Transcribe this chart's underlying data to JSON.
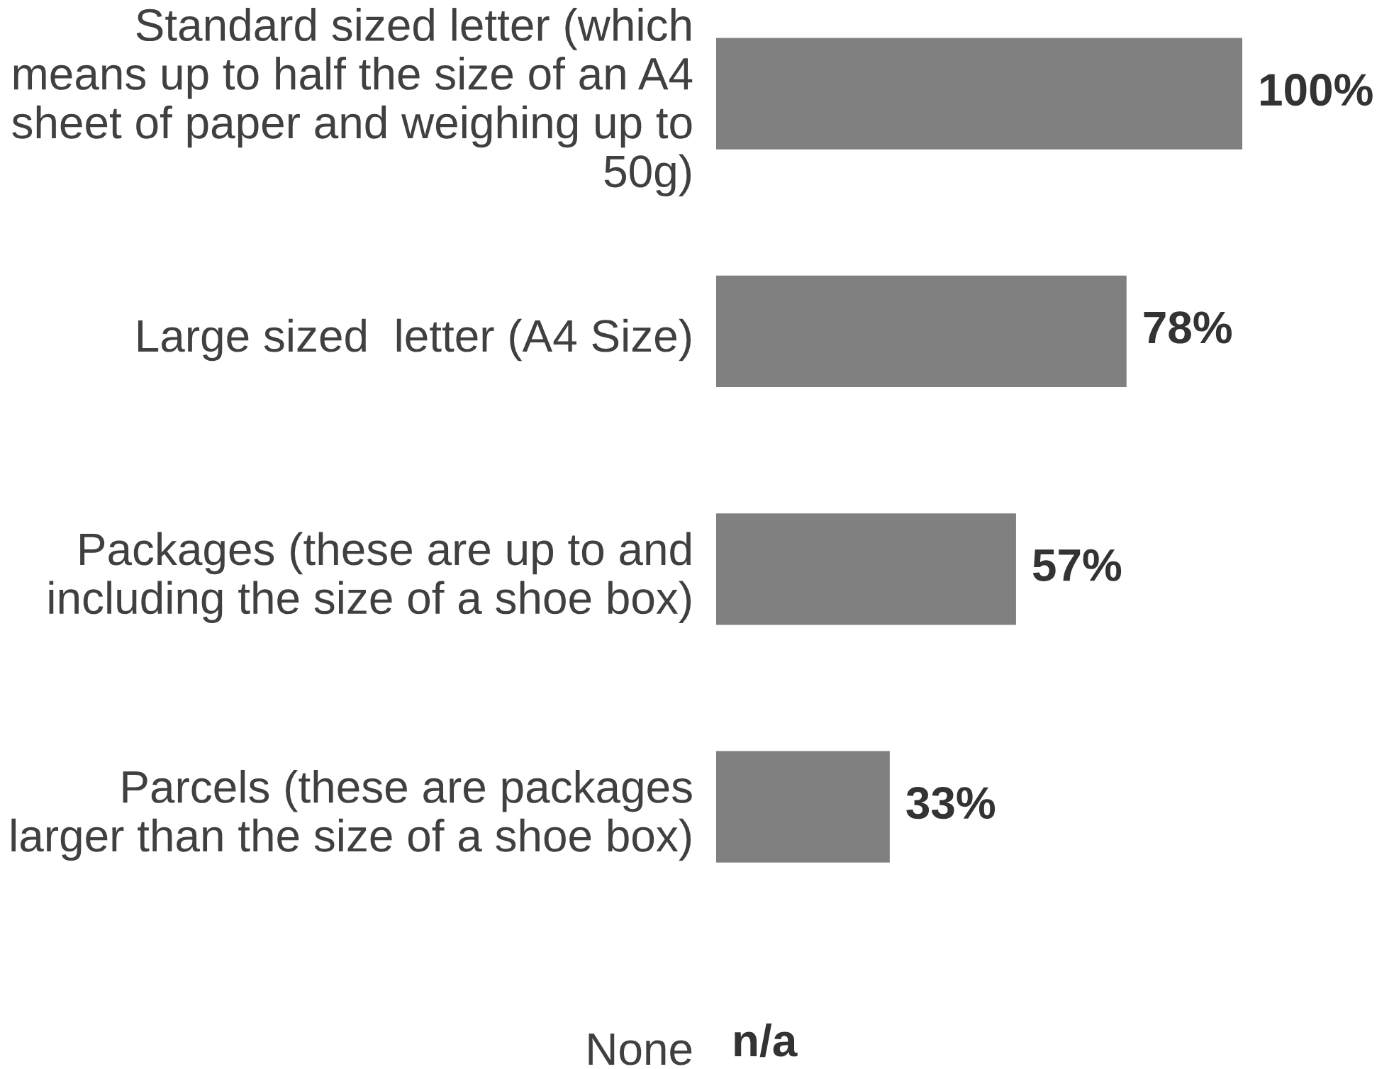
{
  "chart_data": {
    "type": "bar",
    "orientation": "horizontal",
    "categories": [
      "Standard sized letter (which means up to half the size of an A4 sheet of paper and weighing up to 50g)",
      "Large sized  letter (A4 Size)",
      "Packages (these are up to and including the size of a shoe box)",
      "Parcels (these are packages larger than the size of a shoe box)",
      "None"
    ],
    "values": [
      100,
      78,
      57,
      33,
      null
    ],
    "value_labels": [
      "100%",
      "78%",
      "57%",
      "33%",
      "n/a"
    ],
    "color": "#808080",
    "tick_labels": "y"
  }
}
